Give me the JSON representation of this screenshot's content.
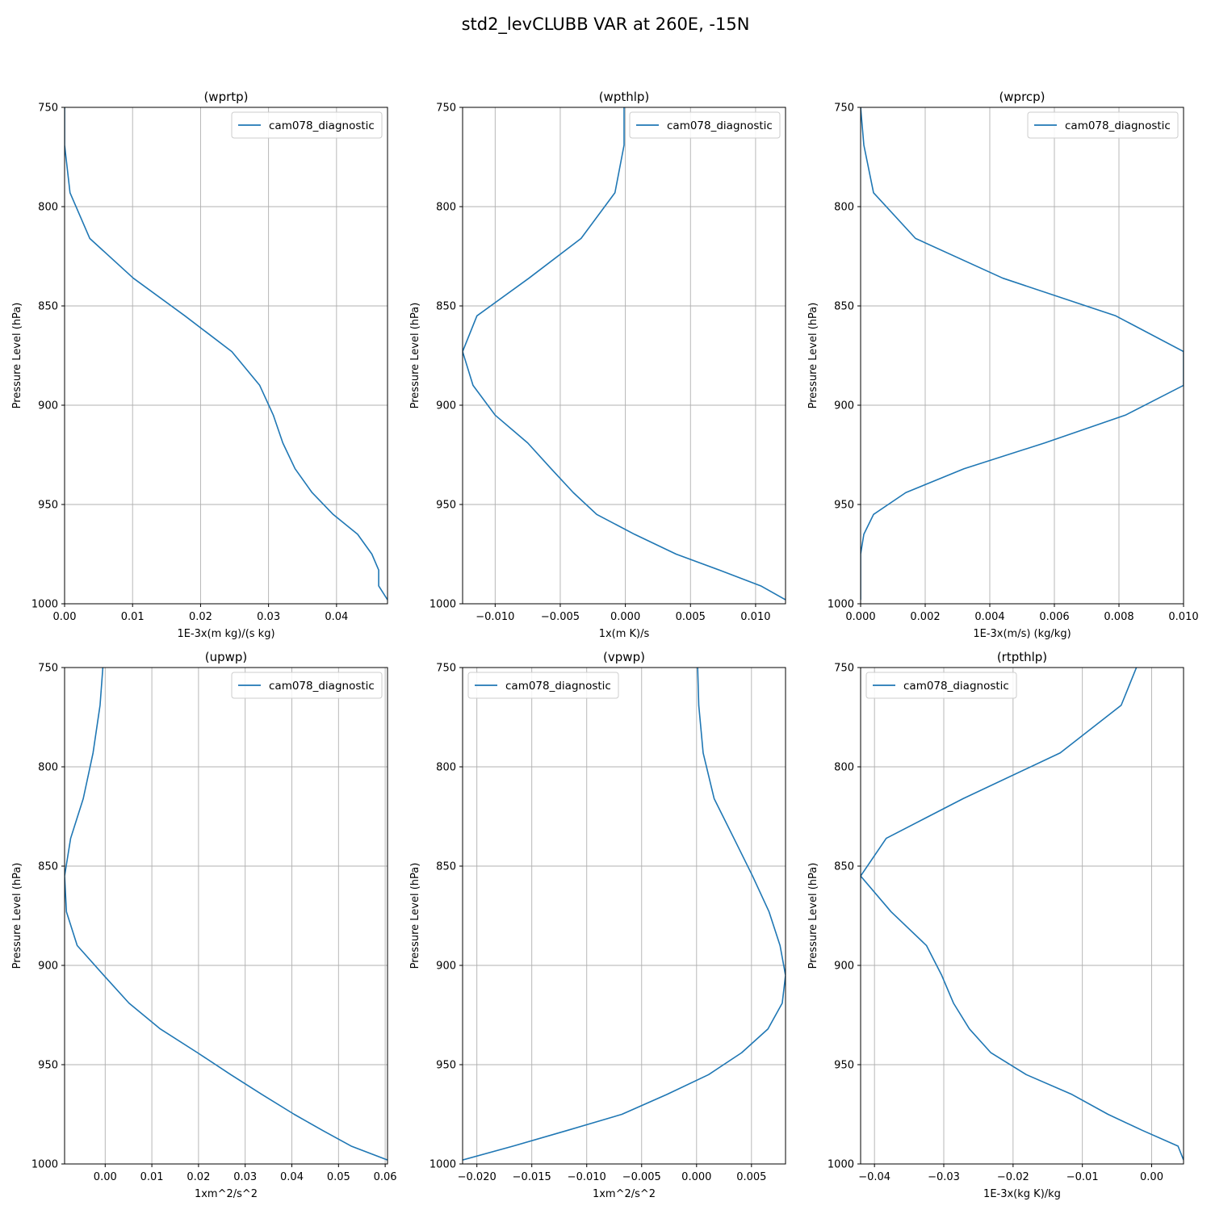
{
  "figure": {
    "title": "std2_levCLUBB VAR at 260E, -15N"
  },
  "chart_data": [
    {
      "type": "line",
      "title": "(wprtp)",
      "xlabel": "1E-3x(m kg)/(s kg)",
      "ylabel": "Pressure Level (hPa)",
      "xlim": [
        0.0,
        0.0475
      ],
      "ylim": [
        1000,
        750
      ],
      "xticks": [
        0.0,
        0.01,
        0.02,
        0.03,
        0.04
      ],
      "xtick_labels": [
        "0.00",
        "0.01",
        "0.02",
        "0.03",
        "0.04"
      ],
      "yticks": [
        750,
        800,
        850,
        900,
        950,
        1000
      ],
      "ytick_labels": [
        "750",
        "800",
        "850",
        "900",
        "950",
        "1000"
      ],
      "grid": true,
      "legend": "upper right",
      "series": [
        {
          "name": "cam078_diagnostic",
          "x": [
            0.0,
            0.0,
            0.0008,
            0.0037,
            0.0101,
            0.0177,
            0.0246,
            0.0287,
            0.0307,
            0.0321,
            0.0339,
            0.0364,
            0.0395,
            0.0431,
            0.0452,
            0.0462,
            0.0462,
            0.0475
          ],
          "y": [
            750,
            769,
            793,
            816,
            836,
            855,
            873,
            890,
            905,
            919,
            932,
            944,
            955,
            965,
            975,
            983,
            991,
            998
          ]
        }
      ]
    },
    {
      "type": "line",
      "title": "(wpthlp)",
      "xlabel": "1x(m K)/s",
      "ylabel": "Pressure Level (hPa)",
      "xlim": [
        -0.0125,
        0.0123
      ],
      "ylim": [
        1000,
        750
      ],
      "xticks": [
        -0.01,
        -0.005,
        0.0,
        0.005,
        0.01
      ],
      "xtick_labels": [
        "−0.010",
        "−0.005",
        "0.000",
        "0.005",
        "0.010"
      ],
      "yticks": [
        750,
        800,
        850,
        900,
        950,
        1000
      ],
      "ytick_labels": [
        "750",
        "800",
        "850",
        "900",
        "950",
        "1000"
      ],
      "grid": true,
      "legend": "upper right",
      "series": [
        {
          "name": "cam078_diagnostic",
          "x": [
            -0.0001,
            -0.0001,
            -0.0008,
            -0.0034,
            -0.0074,
            -0.0114,
            -0.0125,
            -0.0117,
            -0.01,
            -0.0075,
            -0.0057,
            -0.004,
            -0.0022,
            0.0007,
            0.0039,
            0.0072,
            0.0104,
            0.0123
          ],
          "y": [
            750,
            769,
            793,
            816,
            836,
            855,
            873,
            890,
            905,
            919,
            932,
            944,
            955,
            965,
            975,
            983,
            991,
            998
          ]
        }
      ]
    },
    {
      "type": "line",
      "title": "(wprcp)",
      "xlabel": "1E-3x(m/s) (kg/kg)",
      "ylabel": "Pressure Level (hPa)",
      "xlim": [
        0.0,
        0.01
      ],
      "ylim": [
        1000,
        750
      ],
      "xticks": [
        0.0,
        0.002,
        0.004,
        0.006,
        0.008,
        0.01
      ],
      "xtick_labels": [
        "0.000",
        "0.002",
        "0.004",
        "0.006",
        "0.008",
        "0.010"
      ],
      "yticks": [
        750,
        800,
        850,
        900,
        950,
        1000
      ],
      "ytick_labels": [
        "750",
        "800",
        "850",
        "900",
        "950",
        "1000"
      ],
      "grid": true,
      "legend": "upper right",
      "series": [
        {
          "name": "cam078_diagnostic",
          "x": [
            0.0,
            0.0001,
            0.0004,
            0.0017,
            0.0044,
            0.0079,
            0.01,
            0.01,
            0.0082,
            0.0057,
            0.0032,
            0.0014,
            0.0004,
            0.0001,
            0.0,
            0.0,
            0.0,
            0.0
          ],
          "y": [
            750,
            769,
            793,
            816,
            836,
            855,
            873,
            890,
            905,
            919,
            932,
            944,
            955,
            965,
            975,
            983,
            991,
            998
          ]
        }
      ]
    },
    {
      "type": "line",
      "title": "(upwp)",
      "xlabel": "1xm^2/s^2",
      "ylabel": "Pressure Level (hPa)",
      "xlim": [
        -0.0087,
        0.0605
      ],
      "ylim": [
        1000,
        750
      ],
      "xticks": [
        0.0,
        0.01,
        0.02,
        0.03,
        0.04,
        0.05,
        0.06
      ],
      "xtick_labels": [
        "0.00",
        "0.01",
        "0.02",
        "0.03",
        "0.04",
        "0.05",
        "0.06"
      ],
      "yticks": [
        750,
        800,
        850,
        900,
        950,
        1000
      ],
      "ytick_labels": [
        "750",
        "800",
        "850",
        "900",
        "950",
        "1000"
      ],
      "grid": true,
      "legend": "upper right",
      "series": [
        {
          "name": "cam078_diagnostic",
          "x": [
            -0.0005,
            -0.0011,
            -0.0026,
            -0.0047,
            -0.0074,
            -0.0087,
            -0.0083,
            -0.006,
            -0.0003,
            0.0051,
            0.0118,
            0.0198,
            0.0269,
            0.0336,
            0.0405,
            0.0465,
            0.0527,
            0.0605
          ],
          "y": [
            750,
            769,
            793,
            816,
            836,
            855,
            873,
            890,
            905,
            919,
            932,
            944,
            955,
            965,
            975,
            983,
            991,
            998
          ]
        }
      ]
    },
    {
      "type": "line",
      "title": "(vpwp)",
      "xlabel": "1xm^2/s^2",
      "ylabel": "Pressure Level (hPa)",
      "xlim": [
        -0.0213,
        0.0081
      ],
      "ylim": [
        1000,
        750
      ],
      "xticks": [
        -0.02,
        -0.015,
        -0.01,
        -0.005,
        0.0,
        0.005
      ],
      "xtick_labels": [
        "−0.020",
        "−0.015",
        "−0.010",
        "−0.005",
        "0.000",
        "0.005"
      ],
      "yticks": [
        750,
        800,
        850,
        900,
        950,
        1000
      ],
      "ytick_labels": [
        "750",
        "800",
        "850",
        "900",
        "950",
        "1000"
      ],
      "grid": true,
      "legend": "upper left",
      "series": [
        {
          "name": "cam078_diagnostic",
          "x": [
            0.0001,
            0.0002,
            0.0006,
            0.0016,
            0.0034,
            0.0051,
            0.0066,
            0.0076,
            0.0081,
            0.0078,
            0.0065,
            0.0041,
            0.0011,
            -0.0027,
            -0.0068,
            -0.0117,
            -0.0167,
            -0.0213
          ],
          "y": [
            750,
            769,
            793,
            816,
            836,
            855,
            873,
            890,
            905,
            919,
            932,
            944,
            955,
            965,
            975,
            983,
            991,
            998
          ]
        }
      ]
    },
    {
      "type": "line",
      "title": "(rtpthlp)",
      "xlabel": "1E-3x(kg K)/kg",
      "ylabel": "Pressure Level (hPa)",
      "xlim": [
        -0.042,
        0.0046
      ],
      "ylim": [
        1000,
        750
      ],
      "xticks": [
        -0.04,
        -0.03,
        -0.02,
        -0.01,
        0.0
      ],
      "xtick_labels": [
        "−0.04",
        "−0.03",
        "−0.02",
        "−0.01",
        "0.00"
      ],
      "yticks": [
        750,
        800,
        850,
        900,
        950,
        1000
      ],
      "ytick_labels": [
        "750",
        "800",
        "850",
        "900",
        "950",
        "1000"
      ],
      "grid": true,
      "legend": "upper left",
      "series": [
        {
          "name": "cam078_diagnostic",
          "x": [
            -0.0022,
            -0.0044,
            -0.0132,
            -0.0272,
            -0.0383,
            -0.042,
            -0.0376,
            -0.0325,
            -0.0303,
            -0.0286,
            -0.0263,
            -0.0232,
            -0.0181,
            -0.0115,
            -0.0063,
            -0.0014,
            0.0038,
            0.0046
          ],
          "y": [
            750,
            769,
            793,
            816,
            836,
            855,
            873,
            890,
            905,
            919,
            932,
            944,
            955,
            965,
            975,
            983,
            991,
            998
          ]
        }
      ]
    }
  ]
}
